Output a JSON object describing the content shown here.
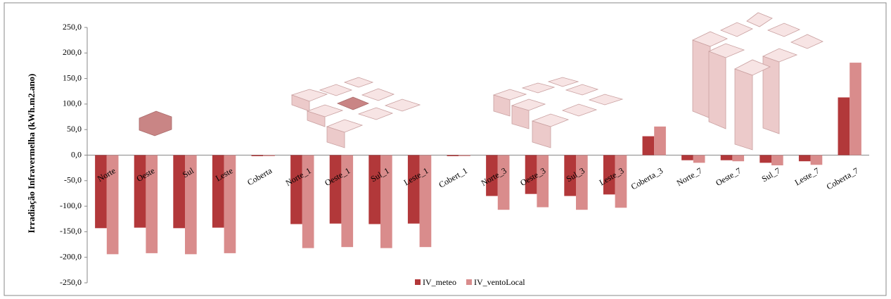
{
  "chart_data": {
    "type": "bar",
    "y_label": "Irradiação Infravermelha (kWh.m2.ano)",
    "categories": [
      "Norte",
      "Oeste",
      "Sul",
      "Leste",
      "Coberta",
      "Norte_1",
      "Oeste_1",
      "Sul_1",
      "Leste_1",
      "Cobert_1",
      "Norte_3",
      "Oeste_3",
      "Sul_3",
      "Leste_3",
      "Coberta_3",
      "Norte_7",
      "Oeste_7",
      "Sul_7",
      "Leste_7",
      "Coberta_7"
    ],
    "series": [
      {
        "name": "IV_meteo",
        "color": "#b2383a",
        "values": [
          -143,
          -142,
          -143,
          -142,
          -2,
          -135,
          -134,
          -135,
          -134,
          -2,
          -80,
          -76,
          -80,
          -77,
          37,
          -10,
          -10,
          -15,
          -12,
          113
        ]
      },
      {
        "name": "IV_ventoLocal",
        "color": "#d98c8c",
        "values": [
          -194,
          -192,
          -194,
          -192,
          -2,
          -182,
          -180,
          -182,
          -180,
          -2,
          -107,
          -102,
          -107,
          -103,
          56,
          -15,
          -12,
          -20,
          -19,
          181
        ]
      }
    ],
    "ylim": [
      -250,
      250
    ],
    "yticks": [
      {
        "value": -250,
        "label": "-250,0"
      },
      {
        "value": -200,
        "label": "-200,0"
      },
      {
        "value": -150,
        "label": "-150,0"
      },
      {
        "value": -100,
        "label": "-100,0"
      },
      {
        "value": -50,
        "label": "-50,0"
      },
      {
        "value": 0,
        "label": "0,0"
      },
      {
        "value": 50,
        "label": "50,0"
      },
      {
        "value": 100,
        "label": "100,0"
      },
      {
        "value": 150,
        "label": "150,0"
      },
      {
        "value": 200,
        "label": "200,0"
      },
      {
        "value": 250,
        "label": "250,0"
      }
    ],
    "legend": "bottom"
  }
}
